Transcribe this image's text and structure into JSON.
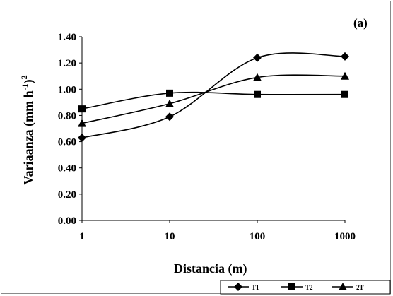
{
  "chart_data": {
    "type": "line",
    "panel_label": "(a)",
    "xlabel": "Distancia (m)",
    "ylabel_main": "Variaanza (mm h",
    "ylabel_sup1": "-1",
    "ylabel_mid": ")",
    "ylabel_sup2": "2",
    "x_scale": "log",
    "x": [
      1,
      10,
      100,
      1000
    ],
    "x_ticks": [
      "1",
      "10",
      "100",
      "1000"
    ],
    "y_ticks": [
      "0.00",
      "0.20",
      "0.40",
      "0.60",
      "0.80",
      "1.00",
      "1.20",
      "1.40"
    ],
    "ylim": [
      0,
      1.4
    ],
    "xlim": [
      1,
      1000
    ],
    "grid": false,
    "legend_position": "bottom-right",
    "series": [
      {
        "name": "T1",
        "marker": "diamond",
        "values": [
          0.63,
          0.79,
          1.24,
          1.25
        ]
      },
      {
        "name": "T2",
        "marker": "square",
        "values": [
          0.85,
          0.97,
          0.96,
          0.96
        ]
      },
      {
        "name": "2T",
        "marker": "triangle",
        "values": [
          0.74,
          0.89,
          1.09,
          1.1
        ]
      }
    ],
    "line_color": "#000000"
  }
}
